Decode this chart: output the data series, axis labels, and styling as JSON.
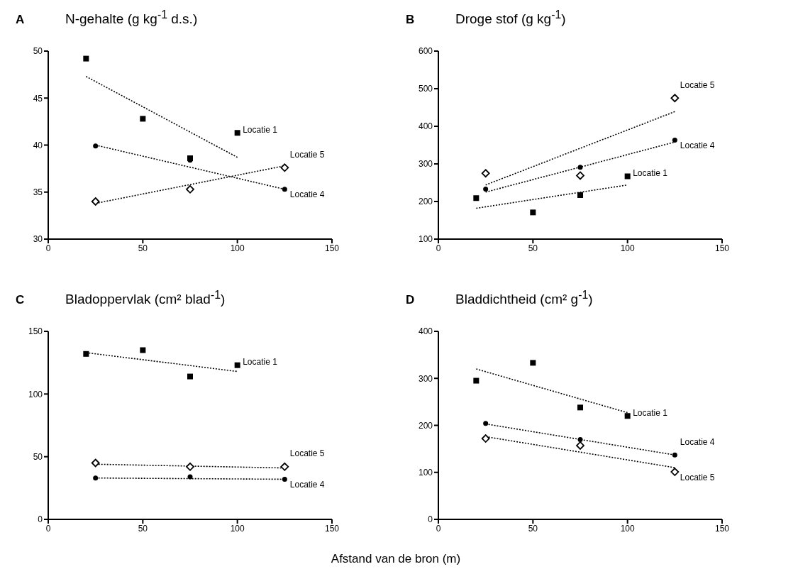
{
  "chart_data": [
    {
      "type": "scatter",
      "title": "N-gehalte (g kg$^{-1}$ d.s.)",
      "annotations": [
        "A"
      ],
      "xlim": [
        0,
        150
      ],
      "xticks": [
        0,
        50,
        100,
        150
      ],
      "ylim": [
        30,
        50
      ],
      "yticks": [
        30,
        35,
        40,
        45,
        50
      ],
      "series": [
        {
          "name": "Locatie 1",
          "color": "#000000",
          "marker": "square",
          "x": [
            20,
            50,
            75,
            100
          ],
          "values": [
            49.2,
            42.8,
            38.6,
            41.3
          ]
        },
        {
          "name": "Locatie 4",
          "color": "#000000",
          "marker": "circle",
          "x": [
            25,
            75,
            125
          ],
          "values": [
            39.9,
            38.4,
            35.3
          ]
        },
        {
          "name": "Locatie 5",
          "color": "#000000",
          "marker": "diamond",
          "x": [
            25,
            75,
            125
          ],
          "values": [
            34.0,
            35.3,
            37.6
          ]
        },
        {
          "type": "line",
          "color": "#000000",
          "line_style": "dotted",
          "x": [
            20,
            100
          ],
          "values": [
            47.3,
            38.7
          ]
        },
        {
          "type": "line",
          "color": "#000000",
          "line_style": "dotted",
          "x": [
            25,
            125
          ],
          "values": [
            40.0,
            35.3
          ]
        },
        {
          "type": "line",
          "color": "#000000",
          "line_style": "dotted",
          "x": [
            25,
            125
          ],
          "values": [
            33.8,
            37.8
          ]
        }
      ]
    },
    {
      "type": "scatter",
      "title": "Droge stof (g kg$^{-1}$)",
      "annotations": [
        "B"
      ],
      "xlim": [
        0,
        150
      ],
      "xticks": [
        0,
        50,
        100,
        150
      ],
      "ylim": [
        100,
        600
      ],
      "yticks": [
        100,
        200,
        300,
        400,
        500,
        600
      ],
      "series": [
        {
          "name": "Locatie 1",
          "color": "#000000",
          "marker": "square",
          "x": [
            20,
            50,
            75,
            100
          ],
          "values": [
            209,
            171,
            217,
            267
          ]
        },
        {
          "name": "Locatie 4",
          "color": "#000000",
          "marker": "circle",
          "x": [
            25,
            75,
            125
          ],
          "values": [
            233,
            291,
            363
          ]
        },
        {
          "name": "Locatie 5",
          "color": "#000000",
          "marker": "diamond",
          "x": [
            25,
            75,
            125
          ],
          "values": [
            275,
            269,
            475
          ]
        },
        {
          "type": "line",
          "color": "#000000",
          "line_style": "dotted",
          "x": [
            20,
            100
          ],
          "values": [
            182,
            244
          ]
        },
        {
          "type": "line",
          "color": "#000000",
          "line_style": "dotted",
          "x": [
            25,
            125
          ],
          "values": [
            225,
            358
          ]
        },
        {
          "type": "line",
          "color": "#000000",
          "line_style": "dotted",
          "x": [
            25,
            125
          ],
          "values": [
            244,
            439
          ]
        }
      ]
    },
    {
      "type": "scatter",
      "title": "Bladoppervlak (cm² blad$^{-1}$)",
      "annotations": [
        "C"
      ],
      "xlabel": "Afstand van de bron (m)",
      "xlim": [
        0,
        150
      ],
      "xticks": [
        0,
        50,
        100,
        150
      ],
      "ylim": [
        0,
        150
      ],
      "yticks": [
        0,
        50,
        100,
        150
      ],
      "series": [
        {
          "name": "Locatie 1",
          "color": "#000000",
          "marker": "square",
          "x": [
            20,
            50,
            75,
            100
          ],
          "values": [
            132,
            135,
            114,
            123
          ]
        },
        {
          "name": "Locatie 4",
          "color": "#000000",
          "marker": "circle",
          "x": [
            25,
            75,
            125
          ],
          "values": [
            33,
            34,
            32
          ]
        },
        {
          "name": "Locatie 5",
          "color": "#000000",
          "marker": "diamond",
          "x": [
            25,
            75,
            125
          ],
          "values": [
            45,
            42,
            42
          ]
        },
        {
          "type": "line",
          "color": "#000000",
          "line_style": "dotted",
          "x": [
            20,
            100
          ],
          "values": [
            133,
            118
          ]
        },
        {
          "type": "line",
          "color": "#000000",
          "line_style": "dotted",
          "x": [
            25,
            125
          ],
          "values": [
            33,
            32
          ]
        },
        {
          "type": "line",
          "color": "#000000",
          "line_style": "dotted",
          "x": [
            25,
            125
          ],
          "values": [
            44,
            41
          ]
        }
      ]
    },
    {
      "type": "scatter",
      "title": "Bladdichtheid (cm² g$^{-1}$)",
      "annotations": [
        "D"
      ],
      "xlim": [
        0,
        150
      ],
      "xticks": [
        0,
        50,
        100,
        150
      ],
      "ylim": [
        0,
        400
      ],
      "yticks": [
        0,
        100,
        200,
        300,
        400
      ],
      "series": [
        {
          "name": "Locatie 1",
          "color": "#000000",
          "marker": "square",
          "x": [
            20,
            50,
            75,
            100
          ],
          "values": [
            295,
            333,
            238,
            220
          ]
        },
        {
          "name": "Locatie 4",
          "color": "#000000",
          "marker": "circle",
          "x": [
            25,
            75,
            125
          ],
          "values": [
            204,
            170,
            137
          ]
        },
        {
          "name": "Locatie 5",
          "color": "#000000",
          "marker": "diamond",
          "x": [
            25,
            75,
            125
          ],
          "values": [
            172,
            157,
            101
          ]
        },
        {
          "type": "line",
          "color": "#000000",
          "line_style": "dotted",
          "x": [
            20,
            100
          ],
          "values": [
            320,
            227
          ]
        },
        {
          "type": "line",
          "color": "#000000",
          "line_style": "dotted",
          "x": [
            25,
            125
          ],
          "values": [
            203,
            137
          ]
        },
        {
          "type": "line",
          "color": "#000000",
          "line_style": "dotted",
          "x": [
            25,
            125
          ],
          "values": [
            176,
            110
          ]
        }
      ]
    }
  ]
}
